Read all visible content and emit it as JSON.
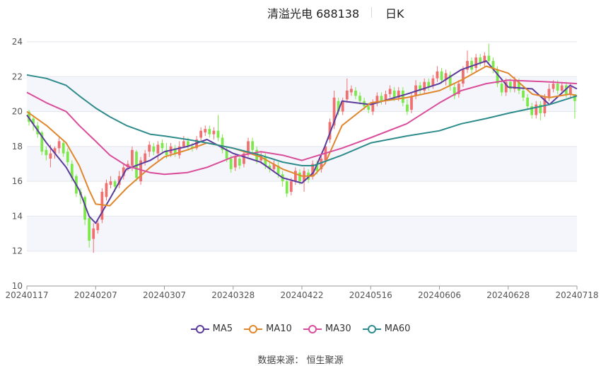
{
  "header": {
    "title": "清溢光电 688138",
    "period": "日K"
  },
  "source": "数据来源：  恒生聚源",
  "chart_data": {
    "type": "candlestick",
    "title": "清溢光电 688138",
    "period": "日K",
    "ylim": [
      10,
      24
    ],
    "yticks": [
      10,
      12,
      14,
      16,
      18,
      20,
      22,
      24
    ],
    "xticks": [
      "20240117",
      "20240207",
      "20240307",
      "20240328",
      "20240422",
      "20240516",
      "20240606",
      "20240628",
      "20240718"
    ],
    "grid": true,
    "legend_position": "bottom",
    "up_color": "#f07070",
    "down_color": "#7de84b",
    "series": [
      {
        "name": "MA5",
        "color": "#5b3b9c",
        "x": [
          "20240117",
          "20240123",
          "20240129",
          "20240202",
          "20240205",
          "20240207",
          "20240213",
          "20240220",
          "20240301",
          "20240307",
          "20240314",
          "20240320",
          "20240328",
          "20240407",
          "20240415",
          "20240422",
          "20240426",
          "20240430",
          "20240506",
          "20240516",
          "20240527",
          "20240606",
          "20240613",
          "20240621",
          "20240628",
          "20240705",
          "20240710",
          "20240716",
          "20240718"
        ],
        "y": [
          19.8,
          18.2,
          16.8,
          15.5,
          14.0,
          13.6,
          15.0,
          16.7,
          17.2,
          17.7,
          18.0,
          18.4,
          17.6,
          17.1,
          16.2,
          15.9,
          16.5,
          18.0,
          20.6,
          20.4,
          21.0,
          21.6,
          22.4,
          22.9,
          21.4,
          21.3,
          20.4,
          21.5,
          21.3
        ]
      },
      {
        "name": "MA10",
        "color": "#e0872d",
        "x": [
          "20240117",
          "20240123",
          "20240129",
          "20240202",
          "20240205",
          "20240207",
          "20240213",
          "20240220",
          "20240301",
          "20240307",
          "20240314",
          "20240320",
          "20240328",
          "20240407",
          "20240415",
          "20240422",
          "20240426",
          "20240430",
          "20240506",
          "20240516",
          "20240527",
          "20240606",
          "20240613",
          "20240621",
          "20240628",
          "20240705",
          "20240710",
          "20240716",
          "20240718"
        ],
        "y": [
          20.0,
          19.2,
          18.2,
          16.9,
          15.5,
          14.7,
          14.6,
          15.6,
          16.8,
          17.4,
          17.8,
          18.2,
          17.9,
          17.4,
          16.7,
          16.3,
          16.3,
          17.0,
          19.2,
          20.5,
          20.8,
          21.2,
          21.8,
          22.6,
          22.2,
          21.0,
          20.8,
          21.0,
          20.9
        ]
      },
      {
        "name": "MA30",
        "color": "#d94d9a",
        "x": [
          "20240117",
          "20240123",
          "20240129",
          "20240202",
          "20240207",
          "20240213",
          "20240220",
          "20240301",
          "20240307",
          "20240314",
          "20240320",
          "20240328",
          "20240407",
          "20240415",
          "20240422",
          "20240426",
          "20240506",
          "20240516",
          "20240527",
          "20240606",
          "20240613",
          "20240621",
          "20240628",
          "20240710",
          "20240718"
        ],
        "y": [
          21.1,
          20.5,
          20.0,
          19.2,
          18.3,
          17.5,
          16.9,
          16.5,
          16.4,
          16.5,
          16.8,
          17.4,
          17.7,
          17.5,
          17.2,
          17.4,
          17.9,
          18.5,
          19.3,
          20.5,
          21.2,
          21.6,
          21.8,
          21.7,
          21.6
        ]
      },
      {
        "name": "MA60",
        "color": "#2e8b8b",
        "x": [
          "20240117",
          "20240123",
          "20240129",
          "20240202",
          "20240207",
          "20240213",
          "20240220",
          "20240301",
          "20240307",
          "20240314",
          "20240320",
          "20240328",
          "20240407",
          "20240415",
          "20240422",
          "20240426",
          "20240506",
          "20240516",
          "20240527",
          "20240606",
          "20240613",
          "20240621",
          "20240628",
          "20240710",
          "20240718"
        ],
        "y": [
          22.1,
          21.9,
          21.5,
          20.9,
          20.2,
          19.7,
          19.2,
          18.7,
          18.6,
          18.4,
          18.2,
          17.9,
          17.5,
          17.1,
          16.9,
          16.9,
          17.5,
          18.2,
          18.6,
          18.9,
          19.3,
          19.6,
          19.9,
          20.4,
          20.9
        ]
      }
    ],
    "candles": [
      {
        "o": 20.0,
        "c": 19.4,
        "h": 20.1,
        "l": 19.2
      },
      {
        "o": 19.6,
        "c": 19.3,
        "h": 19.8,
        "l": 18.9
      },
      {
        "o": 19.2,
        "c": 18.7,
        "h": 19.4,
        "l": 18.5
      },
      {
        "o": 18.8,
        "c": 17.7,
        "h": 18.9,
        "l": 17.5
      },
      {
        "o": 17.8,
        "c": 17.5,
        "h": 18.0,
        "l": 17.2
      },
      {
        "o": 17.3,
        "c": 17.6,
        "h": 18.1,
        "l": 16.8
      },
      {
        "o": 17.6,
        "c": 17.9,
        "h": 18.0,
        "l": 17.3
      },
      {
        "o": 17.9,
        "c": 18.3,
        "h": 18.5,
        "l": 17.6
      },
      {
        "o": 18.2,
        "c": 17.6,
        "h": 18.3,
        "l": 17.4
      },
      {
        "o": 17.7,
        "c": 17.1,
        "h": 17.9,
        "l": 16.9
      },
      {
        "o": 17.0,
        "c": 16.2,
        "h": 17.2,
        "l": 16.0
      },
      {
        "o": 16.3,
        "c": 15.3,
        "h": 16.4,
        "l": 15.1
      },
      {
        "o": 15.4,
        "c": 15.2,
        "h": 15.6,
        "l": 14.7
      },
      {
        "o": 15.1,
        "c": 13.8,
        "h": 15.2,
        "l": 13.5
      },
      {
        "o": 13.9,
        "c": 12.6,
        "h": 14.0,
        "l": 12.2
      },
      {
        "o": 12.7,
        "c": 13.3,
        "h": 13.6,
        "l": 11.9
      },
      {
        "o": 13.2,
        "c": 13.6,
        "h": 13.8,
        "l": 13.0
      },
      {
        "o": 13.8,
        "c": 15.4,
        "h": 15.6,
        "l": 13.6
      },
      {
        "o": 15.1,
        "c": 15.9,
        "h": 16.1,
        "l": 14.9
      },
      {
        "o": 15.8,
        "c": 16.0,
        "h": 16.3,
        "l": 15.6
      },
      {
        "o": 16.0,
        "c": 15.7,
        "h": 16.1,
        "l": 15.4
      },
      {
        "o": 15.8,
        "c": 16.3,
        "h": 16.6,
        "l": 15.6
      },
      {
        "o": 16.3,
        "c": 16.8,
        "h": 17.0,
        "l": 16.1
      },
      {
        "o": 16.8,
        "c": 17.0,
        "h": 17.2,
        "l": 16.6
      },
      {
        "o": 16.9,
        "c": 17.8,
        "h": 18.0,
        "l": 16.6
      },
      {
        "o": 17.7,
        "c": 16.2,
        "h": 17.8,
        "l": 16.0
      },
      {
        "o": 16.0,
        "c": 17.2,
        "h": 17.4,
        "l": 15.8
      },
      {
        "o": 17.1,
        "c": 17.6,
        "h": 17.8,
        "l": 16.9
      },
      {
        "o": 17.7,
        "c": 18.1,
        "h": 18.3,
        "l": 17.4
      },
      {
        "o": 18.0,
        "c": 17.7,
        "h": 18.2,
        "l": 17.5
      },
      {
        "o": 17.6,
        "c": 18.1,
        "h": 18.3,
        "l": 17.2
      },
      {
        "o": 18.2,
        "c": 17.9,
        "h": 18.4,
        "l": 17.6
      },
      {
        "o": 17.8,
        "c": 17.5,
        "h": 18.2,
        "l": 17.3
      },
      {
        "o": 17.6,
        "c": 18.0,
        "h": 18.2,
        "l": 17.4
      },
      {
        "o": 17.9,
        "c": 17.6,
        "h": 18.1,
        "l": 17.4
      },
      {
        "o": 17.5,
        "c": 18.0,
        "h": 18.3,
        "l": 17.3
      },
      {
        "o": 18.0,
        "c": 18.3,
        "h": 18.6,
        "l": 17.9
      },
      {
        "o": 18.3,
        "c": 18.0,
        "h": 18.5,
        "l": 17.8
      },
      {
        "o": 18.0,
        "c": 17.9,
        "h": 18.2,
        "l": 17.7
      },
      {
        "o": 17.9,
        "c": 18.4,
        "h": 18.6,
        "l": 17.8
      },
      {
        "o": 18.5,
        "c": 18.9,
        "h": 19.1,
        "l": 18.3
      },
      {
        "o": 18.8,
        "c": 19.0,
        "h": 19.2,
        "l": 18.6
      },
      {
        "o": 19.0,
        "c": 18.7,
        "h": 19.2,
        "l": 18.5
      },
      {
        "o": 18.7,
        "c": 18.9,
        "h": 19.1,
        "l": 18.4
      },
      {
        "o": 18.9,
        "c": 18.5,
        "h": 19.8,
        "l": 18.3
      },
      {
        "o": 18.5,
        "c": 17.8,
        "h": 18.7,
        "l": 17.6
      },
      {
        "o": 17.8,
        "c": 17.3,
        "h": 18.0,
        "l": 17.1
      },
      {
        "o": 17.3,
        "c": 16.7,
        "h": 17.5,
        "l": 16.5
      },
      {
        "o": 16.8,
        "c": 17.4,
        "h": 17.6,
        "l": 16.6
      },
      {
        "o": 17.3,
        "c": 16.9,
        "h": 17.5,
        "l": 16.7
      },
      {
        "o": 17.0,
        "c": 17.6,
        "h": 17.8,
        "l": 16.8
      },
      {
        "o": 17.6,
        "c": 18.3,
        "h": 18.5,
        "l": 17.4
      },
      {
        "o": 18.3,
        "c": 17.8,
        "h": 18.5,
        "l": 17.6
      },
      {
        "o": 17.8,
        "c": 17.2,
        "h": 18.0,
        "l": 17.0
      },
      {
        "o": 17.2,
        "c": 17.5,
        "h": 17.7,
        "l": 17.0
      },
      {
        "o": 17.4,
        "c": 16.9,
        "h": 17.6,
        "l": 16.7
      },
      {
        "o": 16.9,
        "c": 16.7,
        "h": 17.1,
        "l": 16.5
      },
      {
        "o": 16.7,
        "c": 17.0,
        "h": 17.2,
        "l": 16.5
      },
      {
        "o": 16.9,
        "c": 16.4,
        "h": 17.1,
        "l": 16.2
      },
      {
        "o": 16.4,
        "c": 16.0,
        "h": 16.6,
        "l": 15.7
      },
      {
        "o": 16.0,
        "c": 15.3,
        "h": 16.2,
        "l": 15.1
      },
      {
        "o": 15.4,
        "c": 16.0,
        "h": 16.2,
        "l": 15.2
      },
      {
        "o": 16.0,
        "c": 16.6,
        "h": 16.8,
        "l": 15.8
      },
      {
        "o": 16.5,
        "c": 16.0,
        "h": 16.7,
        "l": 15.8
      },
      {
        "o": 16.0,
        "c": 16.6,
        "h": 16.8,
        "l": 15.4
      },
      {
        "o": 16.5,
        "c": 16.1,
        "h": 16.7,
        "l": 15.9
      },
      {
        "o": 16.3,
        "c": 17.0,
        "h": 17.2,
        "l": 16.1
      },
      {
        "o": 17.0,
        "c": 16.6,
        "h": 17.2,
        "l": 16.4
      },
      {
        "o": 16.7,
        "c": 17.3,
        "h": 17.5,
        "l": 16.5
      },
      {
        "o": 17.2,
        "c": 18.0,
        "h": 18.2,
        "l": 17.0
      },
      {
        "o": 18.4,
        "c": 19.4,
        "h": 19.6,
        "l": 18.2
      },
      {
        "o": 19.2,
        "c": 20.8,
        "h": 21.2,
        "l": 19.0
      },
      {
        "o": 20.6,
        "c": 20.0,
        "h": 20.8,
        "l": 19.8
      },
      {
        "o": 20.0,
        "c": 20.6,
        "h": 20.8,
        "l": 19.8
      },
      {
        "o": 20.7,
        "c": 21.2,
        "h": 21.9,
        "l": 20.5
      },
      {
        "o": 21.1,
        "c": 21.3,
        "h": 21.5,
        "l": 20.9
      },
      {
        "o": 21.2,
        "c": 20.9,
        "h": 21.4,
        "l": 20.7
      },
      {
        "o": 20.9,
        "c": 20.6,
        "h": 21.1,
        "l": 20.4
      },
      {
        "o": 20.6,
        "c": 20.3,
        "h": 20.8,
        "l": 20.1
      },
      {
        "o": 20.3,
        "c": 20.1,
        "h": 20.5,
        "l": 19.9
      },
      {
        "o": 20.0,
        "c": 20.5,
        "h": 20.7,
        "l": 19.8
      },
      {
        "o": 20.5,
        "c": 20.9,
        "h": 21.1,
        "l": 20.3
      },
      {
        "o": 20.9,
        "c": 20.6,
        "h": 21.1,
        "l": 20.4
      },
      {
        "o": 20.6,
        "c": 21.0,
        "h": 21.2,
        "l": 20.4
      },
      {
        "o": 21.0,
        "c": 21.3,
        "h": 21.5,
        "l": 20.8
      },
      {
        "o": 21.2,
        "c": 20.8,
        "h": 21.4,
        "l": 20.6
      },
      {
        "o": 20.8,
        "c": 21.2,
        "h": 21.4,
        "l": 20.6
      },
      {
        "o": 21.2,
        "c": 20.5,
        "h": 21.4,
        "l": 20.3
      },
      {
        "o": 20.4,
        "c": 20.0,
        "h": 20.7,
        "l": 19.8
      },
      {
        "o": 20.1,
        "c": 20.9,
        "h": 21.1,
        "l": 19.9
      },
      {
        "o": 20.9,
        "c": 21.5,
        "h": 21.8,
        "l": 20.7
      },
      {
        "o": 21.5,
        "c": 21.2,
        "h": 21.7,
        "l": 21.0
      },
      {
        "o": 21.2,
        "c": 21.7,
        "h": 21.9,
        "l": 21.0
      },
      {
        "o": 21.7,
        "c": 21.4,
        "h": 21.9,
        "l": 21.2
      },
      {
        "o": 21.5,
        "c": 21.9,
        "h": 22.1,
        "l": 21.3
      },
      {
        "o": 21.9,
        "c": 22.3,
        "h": 22.6,
        "l": 21.7
      },
      {
        "o": 22.3,
        "c": 21.8,
        "h": 22.5,
        "l": 21.6
      },
      {
        "o": 21.8,
        "c": 22.2,
        "h": 22.4,
        "l": 21.5
      },
      {
        "o": 22.1,
        "c": 21.5,
        "h": 22.3,
        "l": 21.2
      },
      {
        "o": 21.4,
        "c": 20.9,
        "h": 21.6,
        "l": 20.7
      },
      {
        "o": 21.0,
        "c": 21.6,
        "h": 21.8,
        "l": 20.8
      },
      {
        "o": 21.6,
        "c": 22.4,
        "h": 22.6,
        "l": 21.4
      },
      {
        "o": 22.4,
        "c": 22.9,
        "h": 23.5,
        "l": 22.2
      },
      {
        "o": 22.9,
        "c": 22.4,
        "h": 23.1,
        "l": 22.2
      },
      {
        "o": 22.5,
        "c": 23.1,
        "h": 23.3,
        "l": 22.3
      },
      {
        "o": 23.1,
        "c": 22.8,
        "h": 23.3,
        "l": 22.6
      },
      {
        "o": 22.8,
        "c": 23.2,
        "h": 23.4,
        "l": 22.6
      },
      {
        "o": 23.2,
        "c": 22.9,
        "h": 23.9,
        "l": 22.7
      },
      {
        "o": 22.9,
        "c": 22.4,
        "h": 23.1,
        "l": 22.2
      },
      {
        "o": 22.4,
        "c": 21.6,
        "h": 22.6,
        "l": 21.4
      },
      {
        "o": 21.6,
        "c": 21.1,
        "h": 21.8,
        "l": 20.9
      },
      {
        "o": 21.1,
        "c": 21.7,
        "h": 21.9,
        "l": 20.9
      },
      {
        "o": 21.7,
        "c": 21.3,
        "h": 21.9,
        "l": 21.1
      },
      {
        "o": 21.3,
        "c": 21.8,
        "h": 22.0,
        "l": 21.1
      },
      {
        "o": 21.7,
        "c": 21.2,
        "h": 21.9,
        "l": 21.0
      },
      {
        "o": 21.2,
        "c": 20.8,
        "h": 21.4,
        "l": 20.6
      },
      {
        "o": 20.8,
        "c": 20.3,
        "h": 21.0,
        "l": 20.1
      },
      {
        "o": 20.3,
        "c": 19.8,
        "h": 20.5,
        "l": 19.6
      },
      {
        "o": 19.8,
        "c": 20.4,
        "h": 20.6,
        "l": 19.6
      },
      {
        "o": 20.4,
        "c": 19.9,
        "h": 20.6,
        "l": 19.5
      },
      {
        "o": 19.9,
        "c": 20.8,
        "h": 21.0,
        "l": 19.7
      },
      {
        "o": 20.8,
        "c": 21.3,
        "h": 21.6,
        "l": 20.6
      },
      {
        "o": 21.3,
        "c": 21.6,
        "h": 21.8,
        "l": 21.1
      },
      {
        "o": 21.6,
        "c": 21.2,
        "h": 21.8,
        "l": 21.0
      },
      {
        "o": 21.2,
        "c": 21.5,
        "h": 21.7,
        "l": 21.0
      },
      {
        "o": 21.5,
        "c": 21.0,
        "h": 21.7,
        "l": 20.8
      },
      {
        "o": 21.0,
        "c": 21.4,
        "h": 21.6,
        "l": 20.8
      },
      {
        "o": 21.0,
        "c": 20.6,
        "h": 21.0,
        "l": 19.6
      }
    ]
  }
}
